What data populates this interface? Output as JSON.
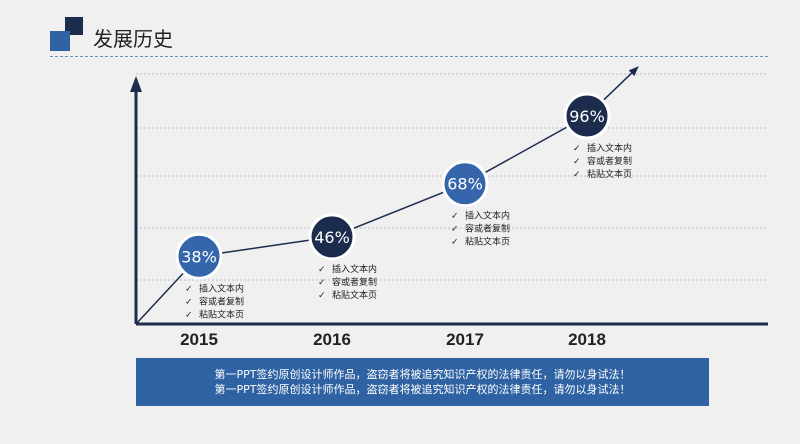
{
  "header": {
    "title": "发展历史"
  },
  "chart_data": {
    "type": "line",
    "categories": [
      "2015",
      "2016",
      "2017",
      "2018"
    ],
    "values": [
      38,
      46,
      68,
      96
    ],
    "value_labels": [
      "38%",
      "46%",
      "68%",
      "96%"
    ],
    "item_notes": [
      [
        "插入文本内",
        "容或者复制",
        "粘贴文本页"
      ],
      [
        "插入文本内",
        "容或者复制",
        "粘贴文本页"
      ],
      [
        "插入文本内",
        "容或者复制",
        "粘贴文本页"
      ],
      [
        "插入文本内",
        "容或者复制",
        "粘贴文本页"
      ]
    ],
    "check_mark": "✓",
    "marker_colors": [
      "#3566ab",
      "#1b2c4c",
      "#3566ab",
      "#1b2c4c"
    ],
    "grid": true,
    "axes": {
      "arrow_y": true,
      "arrow_trend": true
    }
  },
  "footer": {
    "lines": [
      "第一PPT签约原创设计师作品，盗窃者将被追究知识产权的法律责任，请勿以身试法！",
      "第一PPT签约原创设计师作品，盗窃者将被追究知识产权的法律责任，请勿以身试法！"
    ]
  }
}
